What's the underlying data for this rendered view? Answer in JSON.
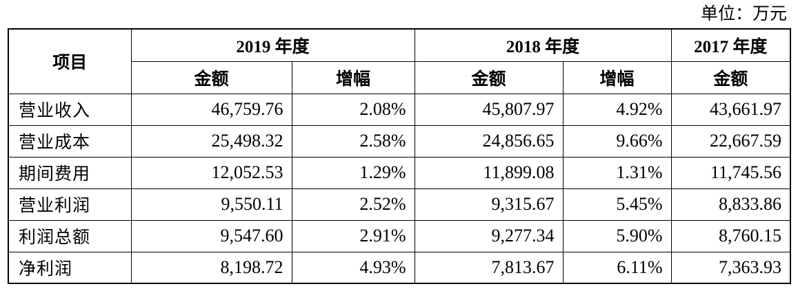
{
  "unit_note": "单位：万元",
  "header": {
    "item_label": "项目",
    "years": [
      "2019 年度",
      "2018 年度",
      "2017 年度"
    ],
    "amount_label": "金额",
    "growth_label": "增幅"
  },
  "rows": [
    {
      "label": "营业收入",
      "y2019_amount": "46,759.76",
      "y2019_growth": "2.08%",
      "y2018_amount": "45,807.97",
      "y2018_growth": "4.92%",
      "y2017_amount": "43,661.97"
    },
    {
      "label": "营业成本",
      "y2019_amount": "25,498.32",
      "y2019_growth": "2.58%",
      "y2018_amount": "24,856.65",
      "y2018_growth": "9.66%",
      "y2017_amount": "22,667.59"
    },
    {
      "label": "期间费用",
      "y2019_amount": "12,052.53",
      "y2019_growth": "1.29%",
      "y2018_amount": "11,899.08",
      "y2018_growth": "1.31%",
      "y2017_amount": "11,745.56"
    },
    {
      "label": "营业利润",
      "y2019_amount": "9,550.11",
      "y2019_growth": "2.52%",
      "y2018_amount": "9,315.67",
      "y2018_growth": "5.45%",
      "y2017_amount": "8,833.86"
    },
    {
      "label": "利润总额",
      "y2019_amount": "9,547.60",
      "y2019_growth": "2.91%",
      "y2018_amount": "9,277.34",
      "y2018_growth": "5.90%",
      "y2017_amount": "8,760.15"
    },
    {
      "label": "净利润",
      "y2019_amount": "8,198.72",
      "y2019_growth": "4.93%",
      "y2018_amount": "7,813.67",
      "y2018_growth": "6.11%",
      "y2017_amount": "7,363.93"
    }
  ]
}
